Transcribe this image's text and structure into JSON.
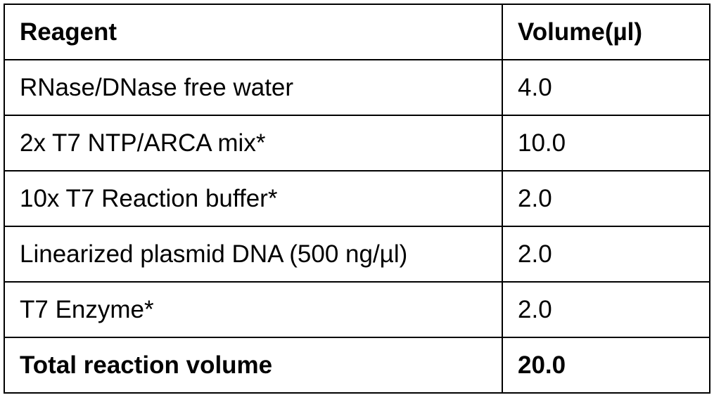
{
  "table": {
    "header": [
      "Reagent",
      "Volume(µl)"
    ],
    "rows": [
      [
        "RNase/DNase free water",
        "4.0"
      ],
      [
        "2x T7 NTP/ARCA mix*",
        "10.0"
      ],
      [
        "10x T7 Reaction buffer*",
        "2.0"
      ],
      [
        "Linearized plasmid DNA (500 ng/µl)",
        "2.0"
      ],
      [
        "T7 Enzyme*",
        "2.0"
      ],
      [
        "Total reaction volume",
        "20.0"
      ]
    ]
  }
}
